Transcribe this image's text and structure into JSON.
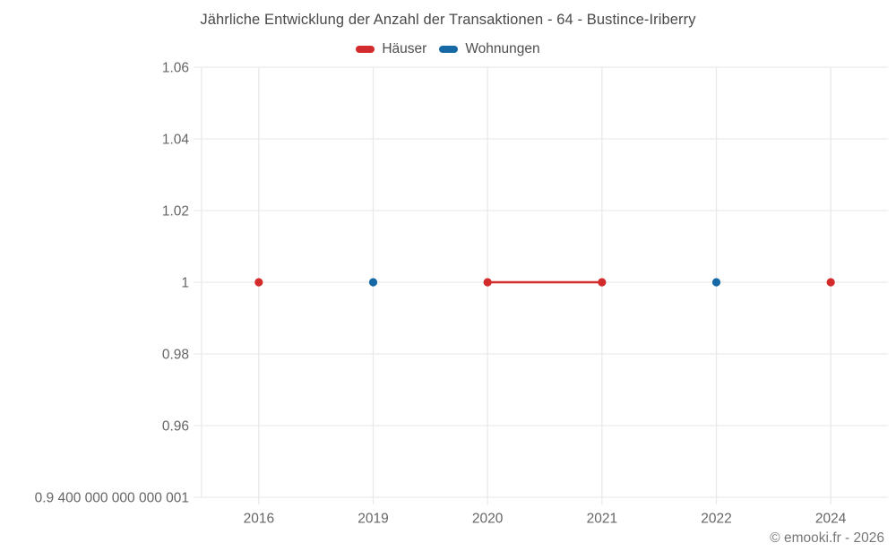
{
  "title": "Jährliche Entwicklung der Anzahl der Transaktionen - 64 - Bustince-Iriberry",
  "copyright": "© emooki.fr - 2026",
  "colors": {
    "haeuser": "#d32b2b",
    "wohnungen": "#1769a6",
    "grid": "#e9e9e9",
    "axis_text": "#666666",
    "title_text": "#4a4a4a"
  },
  "chart_data": {
    "type": "line",
    "categories": [
      "2016",
      "2019",
      "2020",
      "2021",
      "2022",
      "2024"
    ],
    "series": [
      {
        "name": "Häuser",
        "color": "#d32b2b",
        "values": [
          1,
          null,
          1,
          1,
          null,
          1
        ]
      },
      {
        "name": "Wohnungen",
        "color": "#1769a6",
        "values": [
          null,
          1,
          null,
          null,
          1,
          null
        ]
      }
    ],
    "title": "Jährliche Entwicklung der Anzahl der Transaktionen - 64 - Bustince-Iriberry",
    "xlabel": "",
    "ylabel": "",
    "ylim": [
      0.94,
      1.06
    ],
    "grid": true,
    "legend_position": "top",
    "yticks": [
      {
        "value": 1.06,
        "label": "1.06"
      },
      {
        "value": 1.04,
        "label": "1.04"
      },
      {
        "value": 1.02,
        "label": "1.02"
      },
      {
        "value": 1.0,
        "label": "1"
      },
      {
        "value": 0.98,
        "label": "0.98"
      },
      {
        "value": 0.96,
        "label": "0.96"
      },
      {
        "value": 0.94,
        "label": "0.9 400 000 000 000 001"
      }
    ]
  }
}
